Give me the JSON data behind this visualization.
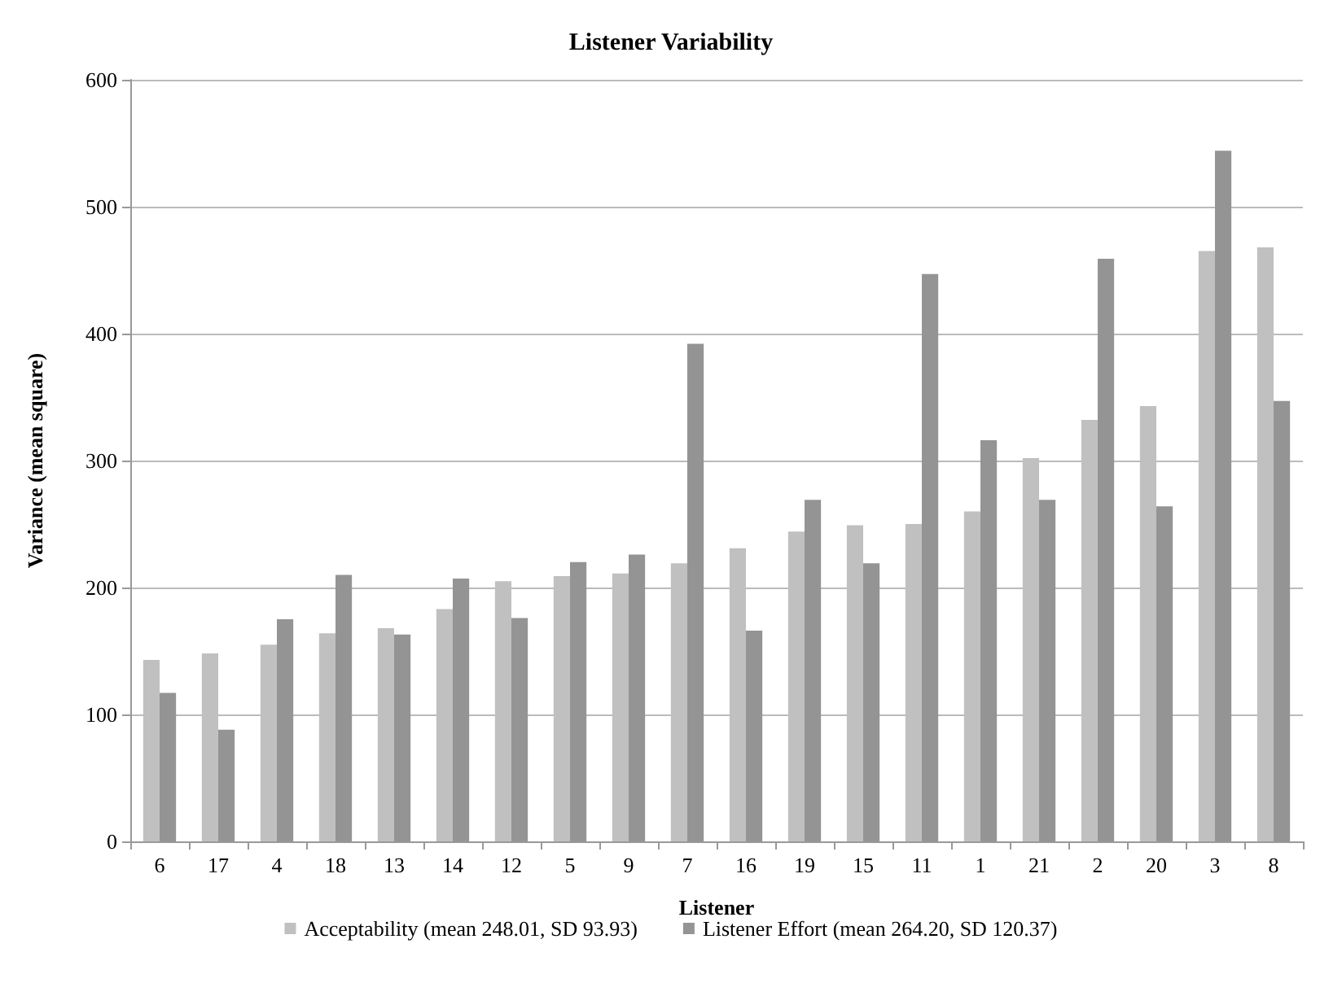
{
  "chart_data": {
    "type": "bar",
    "title": "Listener Variability",
    "xlabel": "Listener",
    "ylabel": "Variance (mean square)",
    "categories": [
      "6",
      "17",
      "4",
      "18",
      "13",
      "14",
      "12",
      "5",
      "9",
      "7",
      "16",
      "19",
      "15",
      "11",
      "1",
      "21",
      "2",
      "20",
      "3",
      "8"
    ],
    "series": [
      {
        "name": "Acceptability (mean 248.01, SD 93.93)",
        "color": "#c0c0c0",
        "values": [
          143,
          148,
          155,
          164,
          168,
          183,
          205,
          209,
          211,
          219,
          231,
          244,
          249,
          250,
          260,
          302,
          332,
          343,
          465,
          468
        ]
      },
      {
        "name": "Listener Effort (mean 264.20, SD 120.37)",
        "color": "#949494",
        "values": [
          117,
          88,
          175,
          210,
          163,
          207,
          176,
          220,
          226,
          392,
          166,
          269,
          219,
          447,
          316,
          269,
          459,
          264,
          544,
          347
        ]
      }
    ],
    "ylim": [
      0,
      600
    ],
    "yticks": [
      0,
      100,
      200,
      300,
      400,
      500,
      600
    ],
    "grid": "y",
    "legend": "bottom"
  }
}
